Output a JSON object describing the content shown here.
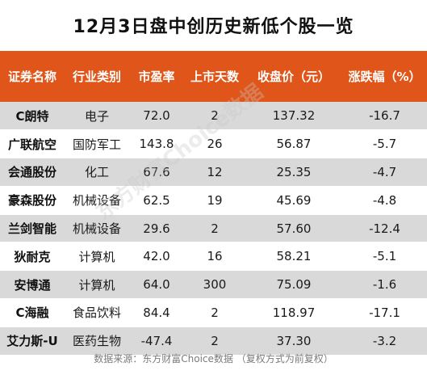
{
  "title": "12月3日盘中创历史新低个股一览",
  "headers": [
    "证券名称",
    "行业类别",
    "市盈率",
    "上市天数",
    "收盘价（元）",
    "涨跌幅（%）"
  ],
  "rows": [
    {
      "name": "C朗特",
      "industry": "电子",
      "pe": "72.0",
      "days": "2",
      "close": "137.32",
      "change": "-16.7"
    },
    {
      "name": "广联航空",
      "industry": "国防军工",
      "pe": "143.8",
      "days": "26",
      "close": "56.87",
      "change": "-5.7"
    },
    {
      "name": "会通股份",
      "industry": "化工",
      "pe": "67.6",
      "days": "12",
      "close": "25.35",
      "change": "-4.7"
    },
    {
      "name": "豪森股份",
      "industry": "机械设备",
      "pe": "62.5",
      "days": "19",
      "close": "45.69",
      "change": "-4.8"
    },
    {
      "name": "兰剑智能",
      "industry": "机械设备",
      "pe": "29.6",
      "days": "2",
      "close": "57.60",
      "change": "-12.4"
    },
    {
      "name": "狄耐克",
      "industry": "计算机",
      "pe": "42.0",
      "days": "16",
      "close": "58.21",
      "change": "-5.1"
    },
    {
      "name": "安博通",
      "industry": "计算机",
      "pe": "64.0",
      "days": "300",
      "close": "75.09",
      "change": "-1.6"
    },
    {
      "name": "C海融",
      "industry": "食品饮料",
      "pe": "84.4",
      "days": "2",
      "close": "118.97",
      "change": "-17.1"
    },
    {
      "name": "艾力斯-U",
      "industry": "医药生物",
      "pe": "-47.4",
      "days": "2",
      "close": "37.30",
      "change": "-3.2"
    }
  ],
  "footer": "数据来源：东方财富Choice数据 （复权方式为前复权）",
  "watermark": "东方财富Choice数据",
  "colors": {
    "header_bg": "#e0561a",
    "stripe": "#d9d9d9"
  }
}
